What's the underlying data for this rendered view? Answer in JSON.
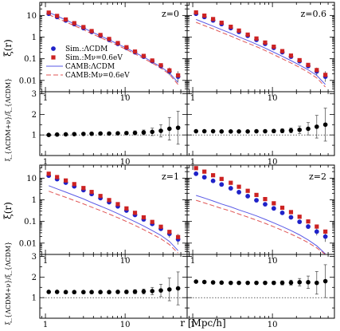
{
  "figure": {
    "xlabel": "r [Mpc/h]",
    "ylabel_top": "ξ(r)",
    "ylabel_ratio_top": "ξ_{ΛCDM+ν}/ξ_{ΛCDM}",
    "ylabel_ratio_bottom": "ξ_{ΛCDM+ν}/ξ_{ΛCDM}"
  },
  "legend": {
    "placement": "inside top-left panel, lower-left",
    "entries": [
      {
        "label": "Sim.:ΛCDM",
        "marker": "circle",
        "color": "#1f22c8"
      },
      {
        "label": "Sim.:Mν=0.6eV",
        "marker": "square",
        "color": "#cc2222"
      },
      {
        "label": "CAMB:ΛCDM",
        "line": "solid",
        "color": "#5a5ae6"
      },
      {
        "label": "CAMB:Mν=0.6eV",
        "line": "dashed",
        "color": "#e05555"
      }
    ]
  },
  "chart_data": [
    {
      "type": "scatter",
      "panel": "z=0 correlation",
      "annotation": "z=0",
      "xscale": "log",
      "yscale": "log",
      "xlim": [
        0.85,
        60
      ],
      "ylim": [
        0.003,
        40
      ],
      "xticks": [
        "1",
        "10"
      ],
      "yticks": [
        "0.01",
        "0.1",
        "1",
        "10"
      ],
      "x": [
        1.1,
        1.4,
        1.8,
        2.3,
        3.0,
        3.8,
        4.9,
        6.3,
        8.1,
        10.4,
        13.3,
        17.1,
        21.9,
        28.1,
        36.0,
        46.2
      ],
      "series": [
        {
          "name": "Sim.:ΛCDM",
          "values": [
            12.0,
            8.5,
            5.9,
            4.0,
            2.6,
            1.75,
            1.15,
            0.75,
            0.49,
            0.32,
            0.2,
            0.125,
            0.077,
            0.046,
            0.026,
            0.015
          ]
        },
        {
          "name": "Sim.:Mν=0.6eV",
          "values": [
            13.5,
            9.5,
            6.5,
            4.4,
            2.9,
            1.9,
            1.25,
            0.82,
            0.53,
            0.34,
            0.215,
            0.135,
            0.083,
            0.05,
            0.029,
            0.017
          ]
        },
        {
          "name": "CAMB:ΛCDM",
          "values": [
            14.0,
            9.4,
            6.2,
            4.1,
            2.65,
            1.75,
            1.14,
            0.74,
            0.48,
            0.31,
            0.195,
            0.12,
            0.072,
            0.042,
            0.022,
            0.008
          ]
        },
        {
          "name": "CAMB:Mν=0.6eV",
          "values": [
            10.8,
            7.4,
            5.0,
            3.35,
            2.2,
            1.45,
            0.95,
            0.62,
            0.41,
            0.265,
            0.168,
            0.104,
            0.063,
            0.037,
            0.019,
            0.0065
          ]
        }
      ]
    },
    {
      "type": "scatter",
      "panel": "z=0.6 correlation",
      "annotation": "z=0.6",
      "xscale": "log",
      "yscale": "log",
      "xlim": [
        0.85,
        60
      ],
      "ylim": [
        0.003,
        40
      ],
      "xticks": [
        "1",
        "10"
      ],
      "yticks": [],
      "x": [
        1.1,
        1.4,
        1.8,
        2.3,
        3.0,
        3.8,
        4.9,
        6.3,
        8.1,
        10.4,
        13.3,
        17.1,
        21.9,
        28.1,
        36.0,
        46.2
      ],
      "series": [
        {
          "name": "Sim.:ΛCDM",
          "values": [
            12.0,
            8.5,
            5.9,
            4.0,
            2.6,
            1.75,
            1.15,
            0.75,
            0.49,
            0.32,
            0.2,
            0.125,
            0.077,
            0.046,
            0.026,
            0.015
          ]
        },
        {
          "name": "Sim.:Mν=0.6eV",
          "values": [
            13.8,
            9.8,
            6.8,
            4.6,
            3.0,
            2.0,
            1.3,
            0.86,
            0.56,
            0.36,
            0.225,
            0.14,
            0.086,
            0.052,
            0.03,
            0.018
          ]
        },
        {
          "name": "CAMB:ΛCDM",
          "values": [
            6.5,
            4.6,
            3.2,
            2.2,
            1.5,
            1.02,
            0.7,
            0.47,
            0.31,
            0.2,
            0.13,
            0.082,
            0.051,
            0.031,
            0.017,
            0.0065
          ]
        },
        {
          "name": "CAMB:Mν=0.6eV",
          "values": [
            4.8,
            3.4,
            2.4,
            1.65,
            1.12,
            0.77,
            0.53,
            0.36,
            0.24,
            0.155,
            0.1,
            0.064,
            0.04,
            0.024,
            0.013,
            0.005
          ]
        }
      ]
    },
    {
      "type": "scatter",
      "panel": "z=0 ratio",
      "xscale": "log",
      "xlim": [
        0.85,
        60
      ],
      "ylim": [
        0,
        3.1
      ],
      "xticks": [
        "1",
        "10"
      ],
      "yticks": [
        "1",
        "2",
        "3"
      ],
      "reference_line": 1,
      "x": [
        1.1,
        1.4,
        1.8,
        2.3,
        3.0,
        3.8,
        4.9,
        6.3,
        8.1,
        10.4,
        13.3,
        17.1,
        21.9,
        28.1,
        36.0,
        46.2
      ],
      "series": [
        {
          "values": [
            1.0,
            1.02,
            1.03,
            1.04,
            1.05,
            1.06,
            1.07,
            1.07,
            1.08,
            1.09,
            1.1,
            1.12,
            1.15,
            1.2,
            1.3,
            1.35
          ],
          "errors": [
            0.03,
            0.03,
            0.03,
            0.03,
            0.04,
            0.04,
            0.05,
            0.06,
            0.07,
            0.08,
            0.1,
            0.12,
            0.18,
            0.3,
            0.55,
            0.8
          ]
        }
      ]
    },
    {
      "type": "scatter",
      "panel": "z=0.6 ratio",
      "xscale": "log",
      "xlim": [
        0.85,
        60
      ],
      "ylim": [
        0,
        3.1
      ],
      "xticks": [
        "1",
        "10"
      ],
      "yticks": [],
      "reference_line": 1,
      "x": [
        1.1,
        1.4,
        1.8,
        2.3,
        3.0,
        3.8,
        4.9,
        6.3,
        8.1,
        10.4,
        13.3,
        17.1,
        21.9,
        28.1,
        36.0,
        46.2
      ],
      "series": [
        {
          "values": [
            1.18,
            1.18,
            1.18,
            1.17,
            1.17,
            1.17,
            1.17,
            1.18,
            1.18,
            1.19,
            1.2,
            1.22,
            1.25,
            1.3,
            1.4,
            1.5
          ],
          "errors": [
            0.03,
            0.03,
            0.03,
            0.03,
            0.04,
            0.04,
            0.05,
            0.06,
            0.07,
            0.08,
            0.1,
            0.12,
            0.18,
            0.3,
            0.55,
            0.8
          ]
        }
      ]
    },
    {
      "type": "scatter",
      "panel": "z=1 correlation",
      "annotation": "z=1",
      "xscale": "log",
      "yscale": "log",
      "xlim": [
        0.85,
        60
      ],
      "ylim": [
        0.003,
        40
      ],
      "xticks": [
        "1",
        "10"
      ],
      "yticks": [
        "0.01",
        "0.1",
        "1",
        "10"
      ],
      "x": [
        1.1,
        1.4,
        1.8,
        2.3,
        3.0,
        3.8,
        4.9,
        6.3,
        8.1,
        10.4,
        13.3,
        17.1,
        21.9,
        28.1,
        36.0,
        46.2
      ],
      "series": [
        {
          "name": "Sim.:ΛCDM",
          "values": [
            13.0,
            9.0,
            6.2,
            4.2,
            2.8,
            1.85,
            1.2,
            0.78,
            0.5,
            0.32,
            0.2,
            0.125,
            0.077,
            0.046,
            0.027,
            0.015
          ]
        },
        {
          "name": "Sim.:Mν=0.6eV",
          "values": [
            16.0,
            11.2,
            7.8,
            5.3,
            3.5,
            2.3,
            1.5,
            0.97,
            0.63,
            0.4,
            0.25,
            0.155,
            0.095,
            0.057,
            0.033,
            0.019
          ]
        },
        {
          "name": "CAMB:ΛCDM",
          "values": [
            4.5,
            3.2,
            2.25,
            1.6,
            1.1,
            0.75,
            0.51,
            0.35,
            0.23,
            0.15,
            0.098,
            0.062,
            0.038,
            0.023,
            0.012,
            0.0045
          ]
        },
        {
          "name": "CAMB:Mν=0.6eV",
          "values": [
            2.5,
            1.8,
            1.3,
            0.93,
            0.65,
            0.46,
            0.32,
            0.22,
            0.15,
            0.1,
            0.066,
            0.042,
            0.026,
            0.016,
            0.0085,
            0.0035
          ]
        }
      ]
    },
    {
      "type": "scatter",
      "panel": "z=2 correlation",
      "annotation": "z=2",
      "xscale": "log",
      "yscale": "log",
      "xlim": [
        0.85,
        60
      ],
      "ylim": [
        0.003,
        40
      ],
      "xticks": [
        "1",
        "10"
      ],
      "yticks": [],
      "x": [
        1.1,
        1.4,
        1.8,
        2.3,
        3.0,
        3.8,
        4.9,
        6.3,
        8.1,
        10.4,
        13.3,
        17.1,
        21.9,
        28.1,
        36.0,
        46.2
      ],
      "series": [
        {
          "name": "Sim.:ΛCDM",
          "values": [
            16.0,
            11.0,
            7.5,
            5.1,
            3.4,
            2.25,
            1.47,
            0.95,
            0.62,
            0.4,
            0.25,
            0.155,
            0.096,
            0.058,
            0.034,
            0.02
          ]
        },
        {
          "name": "Sim.:Mν=0.6eV",
          "values": [
            29.0,
            20.0,
            13.6,
            9.2,
            6.1,
            4.0,
            2.6,
            1.68,
            1.08,
            0.69,
            0.43,
            0.27,
            0.165,
            0.1,
            0.058,
            0.034
          ]
        },
        {
          "name": "CAMB:ΛCDM",
          "values": [
            1.6,
            1.2,
            0.88,
            0.64,
            0.47,
            0.34,
            0.25,
            0.18,
            0.125,
            0.086,
            0.058,
            0.038,
            0.024,
            0.014,
            0.0075,
            0.0032
          ]
        },
        {
          "name": "CAMB:Mν=0.6eV",
          "values": [
            0.95,
            0.72,
            0.54,
            0.4,
            0.3,
            0.22,
            0.16,
            0.115,
            0.082,
            0.057,
            0.039,
            0.026,
            0.017,
            0.0105,
            0.006,
            0.0028
          ]
        }
      ]
    },
    {
      "type": "scatter",
      "panel": "z=1 ratio",
      "xscale": "log",
      "xlim": [
        0.85,
        60
      ],
      "ylim": [
        0,
        3.1
      ],
      "xticks": [
        "1",
        "10"
      ],
      "yticks": [
        "1",
        "2",
        "3"
      ],
      "reference_line": 1,
      "x": [
        1.1,
        1.4,
        1.8,
        2.3,
        3.0,
        3.8,
        4.9,
        6.3,
        8.1,
        10.4,
        13.3,
        17.1,
        21.9,
        28.1,
        36.0,
        46.2
      ],
      "series": [
        {
          "values": [
            1.28,
            1.28,
            1.27,
            1.27,
            1.27,
            1.27,
            1.27,
            1.27,
            1.28,
            1.28,
            1.29,
            1.3,
            1.32,
            1.35,
            1.4,
            1.45
          ],
          "errors": [
            0.03,
            0.03,
            0.03,
            0.03,
            0.04,
            0.04,
            0.05,
            0.06,
            0.07,
            0.08,
            0.1,
            0.12,
            0.18,
            0.3,
            0.55,
            0.8
          ]
        }
      ]
    },
    {
      "type": "scatter",
      "panel": "z=2 ratio",
      "xscale": "log",
      "xlim": [
        0.85,
        60
      ],
      "ylim": [
        0,
        3.1
      ],
      "xticks": [
        "1",
        "10"
      ],
      "yticks": [],
      "reference_line": 1,
      "x": [
        1.1,
        1.4,
        1.8,
        2.3,
        3.0,
        3.8,
        4.9,
        6.3,
        8.1,
        10.4,
        13.3,
        17.1,
        21.9,
        28.1,
        36.0,
        46.2
      ],
      "series": [
        {
          "values": [
            1.78,
            1.76,
            1.74,
            1.73,
            1.72,
            1.72,
            1.72,
            1.72,
            1.72,
            1.72,
            1.72,
            1.73,
            1.75,
            1.75,
            1.72,
            1.8
          ],
          "errors": [
            0.03,
            0.03,
            0.03,
            0.03,
            0.04,
            0.04,
            0.05,
            0.06,
            0.07,
            0.08,
            0.1,
            0.12,
            0.18,
            0.3,
            0.55,
            0.8
          ]
        }
      ]
    }
  ]
}
